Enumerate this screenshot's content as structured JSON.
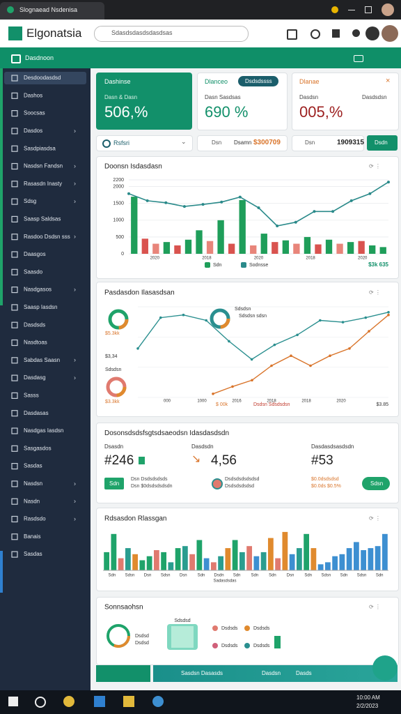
{
  "browser": {
    "tab": "Slognaead Nsdenisa"
  },
  "topbar": {
    "logo": "Elgonatsia",
    "search": "Sdasdsdasdsdasdsas"
  },
  "header": {
    "title": "Dasdnoon"
  },
  "sidebar": {
    "active": 0,
    "items": [
      {
        "label": "Desdoodasdsd",
        "chevron": false
      },
      {
        "label": "Dashos",
        "chevron": false
      },
      {
        "label": "Soocsas",
        "chevron": false
      },
      {
        "label": "Dasdos",
        "chevron": true
      },
      {
        "label": "Sasdpiasdsa",
        "chevron": false
      },
      {
        "label": "Nasdsn Fandsn",
        "chevron": true
      },
      {
        "label": "Rasasdn Inasty",
        "chevron": true
      },
      {
        "label": "Sdsg",
        "chevron": true
      },
      {
        "label": "Saasp Saldsas",
        "chevron": false
      },
      {
        "label": "Rasdoo Dsdsn sss",
        "chevron": true
      },
      {
        "label": "Daasgos",
        "chevron": false
      },
      {
        "label": "Saasdo",
        "chevron": false
      },
      {
        "label": "Nasdgasos",
        "chevron": true
      },
      {
        "label": "Saasp Iasdsn",
        "chevron": false
      },
      {
        "label": "Dasdsds",
        "chevron": false
      },
      {
        "label": "Nasdtoas",
        "chevron": false
      },
      {
        "label": "Sabdas Saasn",
        "chevron": true
      },
      {
        "label": "Dasdasg",
        "chevron": true
      },
      {
        "label": "Sasss",
        "chevron": false
      },
      {
        "label": "Dasdasas",
        "chevron": false
      },
      {
        "label": "Nasdgas Iasdsn",
        "chevron": false
      },
      {
        "label": "Sasgasdos",
        "chevron": false
      },
      {
        "label": "Sasdas",
        "chevron": false
      },
      {
        "label": "Nasdsn",
        "chevron": true
      },
      {
        "label": "Nasdn",
        "chevron": true
      },
      {
        "label": "Rasdsdo",
        "chevron": true
      },
      {
        "label": "Banais",
        "chevron": false
      },
      {
        "label": "Sasdas",
        "chevron": false
      }
    ]
  },
  "cards": [
    {
      "title": "Dashinse",
      "sub": "Dasn & Dasn",
      "value": "506,%"
    },
    {
      "title": "Dlanceo",
      "badge": "Dsdsdssss",
      "sub": "Dasn Sasdsas",
      "value": "690 %"
    },
    {
      "title": "Dlanae",
      "sub": "Dasdsn",
      "sub2": "Dasdsdsn",
      "value": "005,%"
    }
  ],
  "filters": {
    "select": "Rsfsri",
    "f2": "Dsn",
    "f3": "Dsamn",
    "f3value": "$300709",
    "f4": "Dsn",
    "f4value": "1909315",
    "button": "Dsdn"
  },
  "kpi": {
    "title": "Dosonsdsdsfsgtsdsaeodsn Idasdasdsdn",
    "columns": [
      {
        "label": "Dsasdn",
        "value": "#246",
        "button": "Sdn",
        "lines": [
          "Dsn Dsdsdsdsds",
          "Dsn $0dsdsdsdsdn"
        ]
      },
      {
        "label": "Dasdsdn",
        "value": "4,56",
        "lines": [
          "Dsdsdsdsdsdsd",
          "Dsdsdsdsdsd"
        ]
      },
      {
        "label": "Dasdasdsasdsdn",
        "value": "#53",
        "button": "Sdsn",
        "lines": [
          "$0.0dsdsdsd",
          "$0.0ds $0.5%"
        ]
      }
    ]
  },
  "chart_data": [
    {
      "type": "combo",
      "title": "Doonsn Isdasdasn",
      "ylim": [
        0,
        2200
      ],
      "yticks": [
        0,
        500,
        1000,
        1500,
        2000,
        2200
      ],
      "x_labels": [
        "2020",
        "2018",
        "2020",
        "2018",
        "2020"
      ],
      "annotation": "$3k 635",
      "series": [
        {
          "name": "Sdn",
          "color": "#1f9e5a",
          "kind": "bar",
          "values": [
            1700,
            450,
            300,
            350,
            250,
            420,
            700,
            380,
            1000,
            300,
            1600,
            250,
            600,
            350,
            400,
            300,
            500,
            280,
            420,
            300,
            350,
            380,
            250,
            200
          ],
          "colors": [
            "#1f9e5a",
            "#d9534f",
            "#e8857a",
            "#1f9e5a",
            "#d9534f",
            "#1f9e5a",
            "#1f9e5a",
            "#e8857a",
            "#1f9e5a",
            "#d9534f",
            "#1f9e5a",
            "#e8857a",
            "#1f9e5a",
            "#d9534f",
            "#1f9e5a",
            "#e8857a",
            "#1f9e5a",
            "#d9534f",
            "#1f9e5a",
            "#e8857a",
            "#1f9e5a",
            "#d9534f",
            "#1f9e5a",
            "#1f9e5a"
          ]
        },
        {
          "name": "Sodnsse",
          "color": "#2a8a8a",
          "kind": "line",
          "values": [
            1790,
            1580,
            1520,
            1410,
            1470,
            1540,
            1690,
            1370,
            830,
            940,
            1260,
            1260,
            1580,
            1790,
            2135
          ]
        }
      ]
    },
    {
      "type": "line",
      "title": "Pasdasdon Ilasasdsan",
      "ylim": [
        0,
        100
      ],
      "x_labels": [
        "000",
        "1000",
        "2016",
        "2018",
        "2018",
        "2020"
      ],
      "annotations": [
        "Sdsdsn",
        "Sdsdsn sdsn",
        "$5.3kk",
        "$3,34",
        "Sdsdsn",
        "$3.3kk",
        "$ 00k",
        "Dsdsn Sdsdsdsn",
        "$3.85"
      ],
      "series": [
        {
          "color": "#2a8f8f",
          "values": [
            54,
            88,
            91,
            85,
            62,
            42,
            58,
            69,
            85,
            83,
            88,
            94
          ]
        },
        {
          "color": "#d9742a",
          "values": [
            4,
            12,
            19,
            35,
            46,
            35,
            46,
            54,
            73,
            91
          ]
        }
      ]
    },
    {
      "type": "bar",
      "title": "Rdsasdon Rlassgan",
      "ylim": [
        0,
        100
      ],
      "footer": "Sadasdsdas",
      "x_labels": [
        "Sdn",
        "Sdsn",
        "Dsn",
        "Sdsn",
        "Dsn",
        "Sdn",
        "Dsdn",
        "Sdn",
        "Sdn",
        "Sdn",
        "Dsn",
        "Sdn",
        "Sdsn",
        "Sdn",
        "Sdsn",
        "Sdn"
      ],
      "values": [
        45,
        90,
        30,
        55,
        40,
        25,
        35,
        50,
        45,
        20,
        55,
        60,
        40,
        75,
        30,
        20,
        35,
        55,
        75,
        45,
        60,
        35,
        45,
        80,
        30,
        95,
        40,
        55,
        90,
        55,
        15,
        20,
        35,
        40,
        55,
        70,
        50,
        55,
        60,
        90
      ],
      "colors": [
        "#1fa36a",
        "#1fa36a",
        "#e07a6f",
        "#2a9d8f",
        "#e08a2e",
        "#1fa36a",
        "#1fa36a",
        "#e07a6f",
        "#1fa36a",
        "#2a9d8f",
        "#1fa36a",
        "#2a9d8f",
        "#e07a6f",
        "#1fa36a",
        "#3d8fd1",
        "#e07a6f",
        "#2a9d8f",
        "#e08a2e",
        "#1fa36a",
        "#2a9d8f",
        "#e07a6f",
        "#3d8fd1",
        "#2a9d8f",
        "#e08a2e",
        "#e07a6f",
        "#e08a2e",
        "#3d8fd1",
        "#2a9d8f",
        "#1fa36a",
        "#e08a2e",
        "#3d8fd1",
        "#3d8fd1",
        "#3d8fd1",
        "#3d8fd1",
        "#3d8fd1",
        "#3d8fd1",
        "#3d8fd1",
        "#3d8fd1",
        "#3d8fd1",
        "#3d8fd1"
      ]
    },
    {
      "type": "summary",
      "title": "Sonnsaohsn",
      "labels": [
        "Dsdsd",
        "Dsdsd",
        "Sdsdsd",
        "Dsdsds",
        "Dsdsds",
        "Dsdsds",
        "Dsdsds"
      ]
    }
  ],
  "bottombar": {
    "items": [
      "Sasdsn Dasasds",
      "Dasdsn",
      "Dasds"
    ]
  },
  "taskbar": {
    "time": "10:00 AM",
    "date": "2/2/2023"
  }
}
